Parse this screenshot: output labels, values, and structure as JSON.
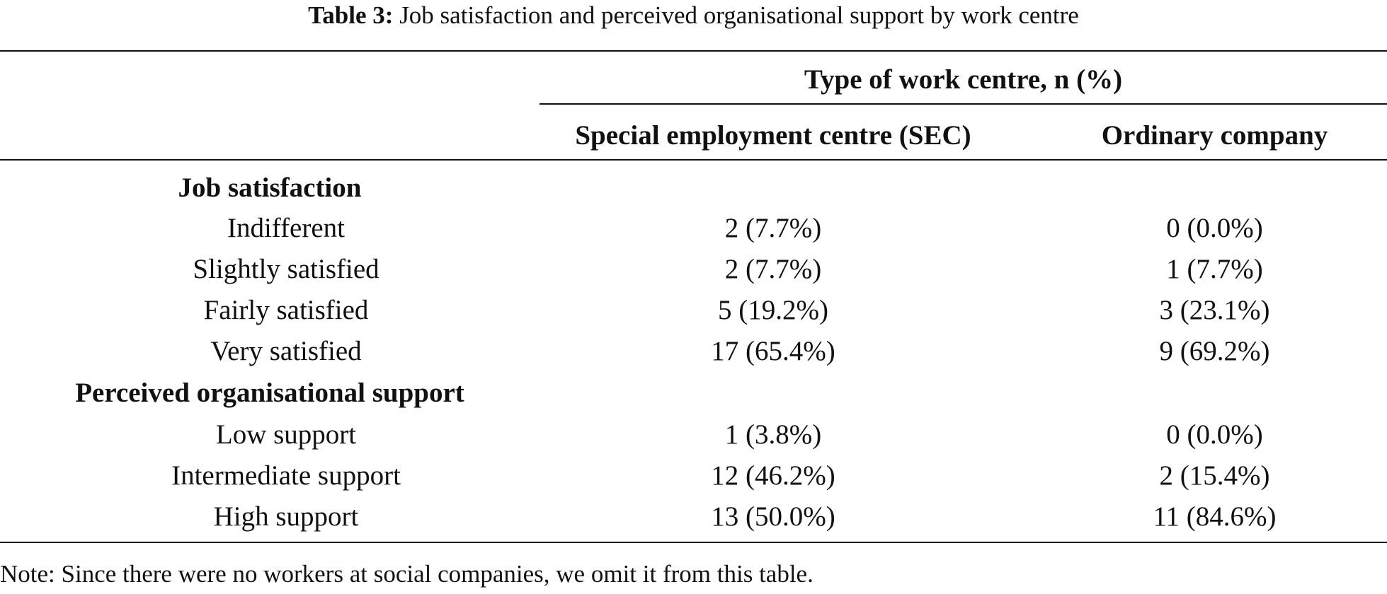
{
  "caption": {
    "label": "Table 3:",
    "text": " Job satisfaction and perceived organisational support by work centre"
  },
  "table": {
    "spanner": "Type of work centre, n (%)",
    "columns": [
      "Special employment centre (SEC)",
      "Ordinary company"
    ],
    "sections": [
      {
        "title": "Job satisfaction",
        "rows": [
          {
            "label": "Indifferent",
            "sec": "2 (7.7%)",
            "ordinary": "0 (0.0%)"
          },
          {
            "label": "Slightly satisfied",
            "sec": "2 (7.7%)",
            "ordinary": "1 (7.7%)"
          },
          {
            "label": "Fairly satisfied",
            "sec": "5 (19.2%)",
            "ordinary": "3 (23.1%)"
          },
          {
            "label": "Very satisfied",
            "sec": "17 (65.4%)",
            "ordinary": "9 (69.2%)"
          }
        ]
      },
      {
        "title": "Perceived organisational support",
        "rows": [
          {
            "label": "Low support",
            "sec": "1 (3.8%)",
            "ordinary": "0 (0.0%)"
          },
          {
            "label": "Intermediate support",
            "sec": "12 (46.2%)",
            "ordinary": "2 (15.4%)"
          },
          {
            "label": "High support",
            "sec": "13 (50.0%)",
            "ordinary": "11 (84.6%)"
          }
        ]
      }
    ]
  },
  "note": "Note: Since there were no workers at social companies, we omit it from this table."
}
